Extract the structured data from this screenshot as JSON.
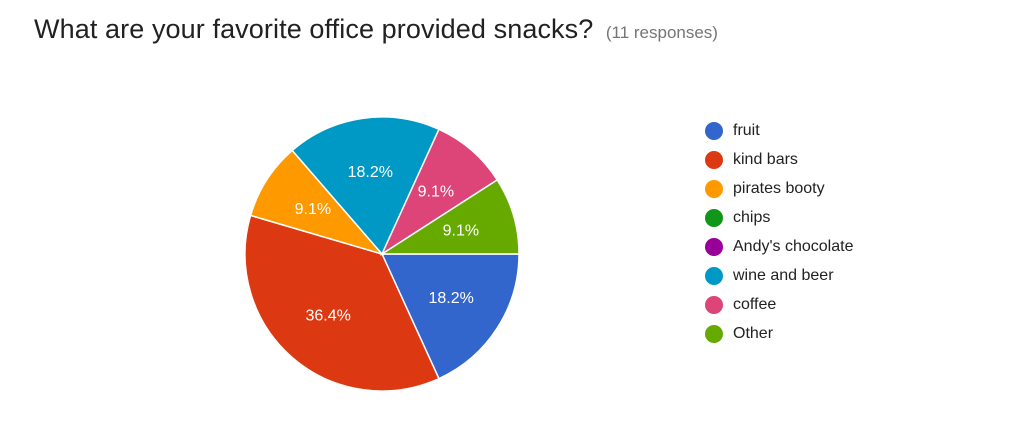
{
  "header": {
    "title": "What are your favorite office provided snacks?",
    "responses": "(11 responses)"
  },
  "chart_data": {
    "type": "pie",
    "title": "What are your favorite office provided snacks?",
    "total_responses": 11,
    "legend_position": "right",
    "slices": [
      {
        "label": "fruit",
        "value": 2,
        "percent_label": "18.2%",
        "color": "#3366cc"
      },
      {
        "label": "kind bars",
        "value": 4,
        "percent_label": "36.4%",
        "color": "#dc3912"
      },
      {
        "label": "pirates booty",
        "value": 1,
        "percent_label": "9.1%",
        "color": "#ff9900"
      },
      {
        "label": "chips",
        "value": 0,
        "percent_label": "",
        "color": "#109618"
      },
      {
        "label": "Andy's chocolate",
        "value": 0,
        "percent_label": "",
        "color": "#990099"
      },
      {
        "label": "wine and beer",
        "value": 2,
        "percent_label": "18.2%",
        "color": "#0099c6"
      },
      {
        "label": "coffee",
        "value": 1,
        "percent_label": "9.1%",
        "color": "#dd4477"
      },
      {
        "label": "Other",
        "value": 1,
        "percent_label": "9.1%",
        "color": "#66aa00"
      }
    ]
  }
}
